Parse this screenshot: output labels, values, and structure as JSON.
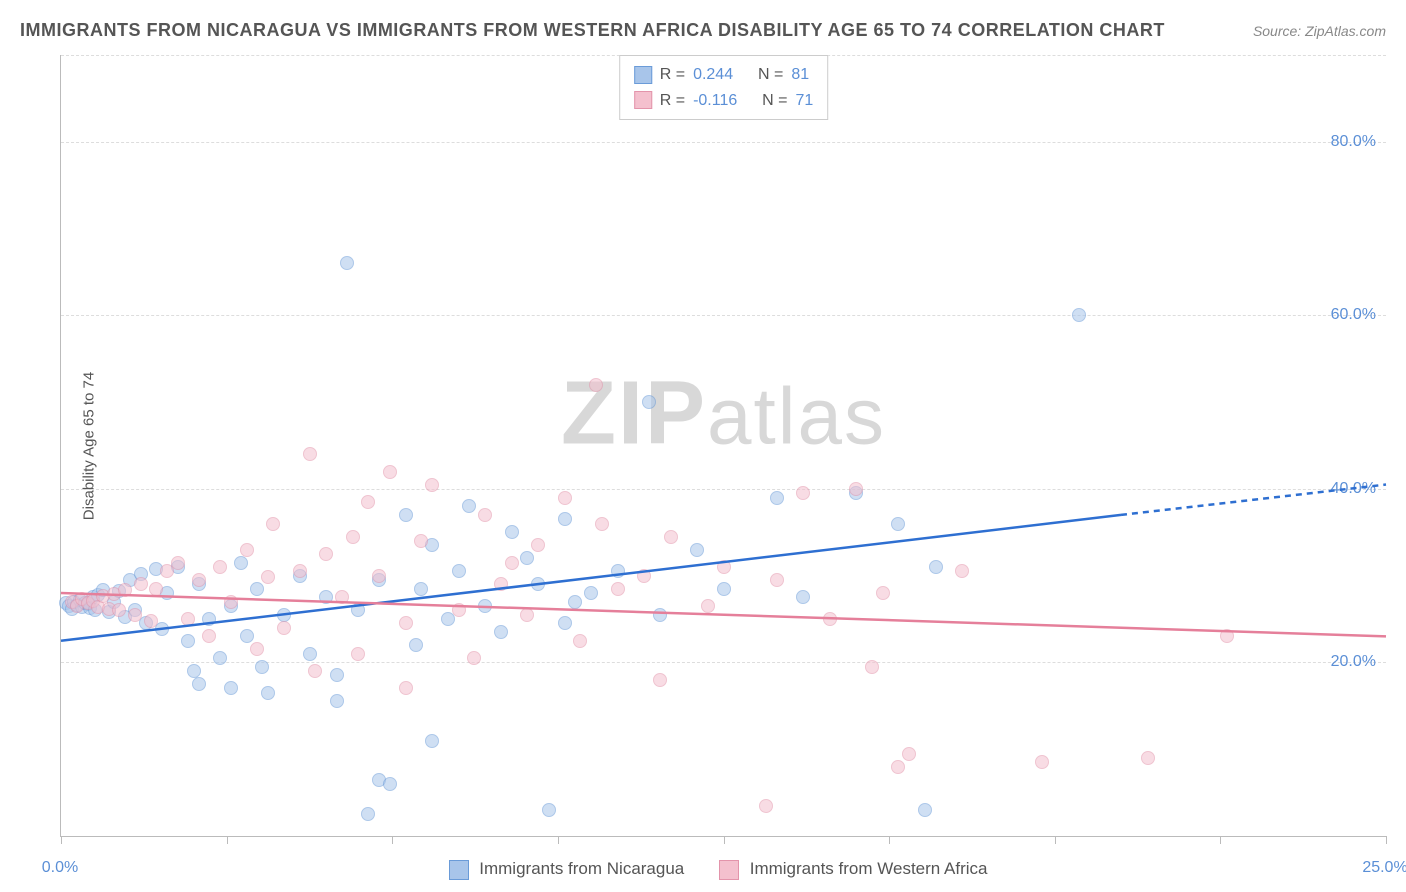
{
  "title": "IMMIGRANTS FROM NICARAGUA VS IMMIGRANTS FROM WESTERN AFRICA DISABILITY AGE 65 TO 74 CORRELATION CHART",
  "source_label": "Source: ",
  "source_name": "ZipAtlas.com",
  "y_axis_label": "Disability Age 65 to 74",
  "watermark_zip": "ZIP",
  "watermark_atlas": "atlas",
  "chart": {
    "type": "scatter",
    "xlim": [
      0,
      25
    ],
    "ylim": [
      0,
      90
    ],
    "background_color": "#ffffff",
    "grid_color": "#dddddd",
    "grid_dash": "4,4",
    "axis_color": "#bbbbbb",
    "point_radius": 7,
    "point_opacity": 0.55,
    "x_ticks": [
      0,
      3.125,
      6.25,
      9.375,
      12.5,
      15.625,
      18.75,
      21.875,
      25
    ],
    "x_tick_labels": {
      "0": "0.0%",
      "25": "25.0%"
    },
    "y_gridlines": [
      20,
      40,
      60,
      80
    ],
    "y_tick_labels": {
      "20": "20.0%",
      "40": "40.0%",
      "60": "60.0%",
      "80": "80.0%"
    },
    "tick_label_color": "#5b8fd6",
    "tick_label_fontsize": 16
  },
  "series": [
    {
      "key": "nicaragua",
      "label": "Immigrants from Nicaragua",
      "fill_color": "#a8c5ea",
      "stroke_color": "#6a9bd8",
      "line_color": "#2e6fd1",
      "line_width": 2.5,
      "R_label": "R = ",
      "R_value": "0.244",
      "N_label": "N = ",
      "N_value": "81",
      "trend": {
        "x1": 0,
        "y1": 22.5,
        "x2": 20,
        "y2": 37,
        "x_dash_end": 25,
        "y_dash_end": 40.5
      },
      "points": [
        [
          0.1,
          26.8
        ],
        [
          0.15,
          26.5
        ],
        [
          0.2,
          26.2
        ],
        [
          0.25,
          27.0
        ],
        [
          0.3,
          26.6
        ],
        [
          0.35,
          27.2
        ],
        [
          0.4,
          26.4
        ],
        [
          0.45,
          26.9
        ],
        [
          0.5,
          26.7
        ],
        [
          0.55,
          26.3
        ],
        [
          0.6,
          27.5
        ],
        [
          0.65,
          26.1
        ],
        [
          0.7,
          27.8
        ],
        [
          0.8,
          28.4
        ],
        [
          0.9,
          25.8
        ],
        [
          1.0,
          27.0
        ],
        [
          1.1,
          28.2
        ],
        [
          1.2,
          25.2
        ],
        [
          1.3,
          29.5
        ],
        [
          1.4,
          26.0
        ],
        [
          1.5,
          30.2
        ],
        [
          1.6,
          24.5
        ],
        [
          1.8,
          30.8
        ],
        [
          1.9,
          23.8
        ],
        [
          2.0,
          28.0
        ],
        [
          2.2,
          31.0
        ],
        [
          2.4,
          22.5
        ],
        [
          2.5,
          19.0
        ],
        [
          2.6,
          29.0
        ],
        [
          2.8,
          25.0
        ],
        [
          2.6,
          17.5
        ],
        [
          3.0,
          20.5
        ],
        [
          3.2,
          26.5
        ],
        [
          3.2,
          17.0
        ],
        [
          3.4,
          31.5
        ],
        [
          3.5,
          23.0
        ],
        [
          3.7,
          28.5
        ],
        [
          3.8,
          19.5
        ],
        [
          3.9,
          16.5
        ],
        [
          4.2,
          25.5
        ],
        [
          4.5,
          30.0
        ],
        [
          4.7,
          21.0
        ],
        [
          5.0,
          27.5
        ],
        [
          5.2,
          15.5
        ],
        [
          5.2,
          18.5
        ],
        [
          5.6,
          26.0
        ],
        [
          5.4,
          66.0
        ],
        [
          5.8,
          2.5
        ],
        [
          6.0,
          29.5
        ],
        [
          6.0,
          6.5
        ],
        [
          6.2,
          6.0
        ],
        [
          6.5,
          37.0
        ],
        [
          6.7,
          22.0
        ],
        [
          6.8,
          28.5
        ],
        [
          7.0,
          33.5
        ],
        [
          7.0,
          11.0
        ],
        [
          7.3,
          25.0
        ],
        [
          7.5,
          30.5
        ],
        [
          7.7,
          38.0
        ],
        [
          8.0,
          26.5
        ],
        [
          8.3,
          23.5
        ],
        [
          8.5,
          35.0
        ],
        [
          8.8,
          32.0
        ],
        [
          9.0,
          29.0
        ],
        [
          9.2,
          3.0
        ],
        [
          9.5,
          36.5
        ],
        [
          9.5,
          24.5
        ],
        [
          9.7,
          27.0
        ],
        [
          10.0,
          28.0
        ],
        [
          10.5,
          30.5
        ],
        [
          11.1,
          50.0
        ],
        [
          11.3,
          25.5
        ],
        [
          12.0,
          33.0
        ],
        [
          13.5,
          39.0
        ],
        [
          14.0,
          27.5
        ],
        [
          15.8,
          36.0
        ],
        [
          16.3,
          3.0
        ],
        [
          16.5,
          31.0
        ],
        [
          19.2,
          60.0
        ],
        [
          15.0,
          39.5
        ],
        [
          12.5,
          28.5
        ]
      ]
    },
    {
      "key": "western_africa",
      "label": "Immigrants from Western Africa",
      "fill_color": "#f4c0ce",
      "stroke_color": "#e394ab",
      "line_color": "#e57f9a",
      "line_width": 2.5,
      "R_label": "R = ",
      "R_value": "-0.116",
      "N_label": "N = ",
      "N_value": "71",
      "trend": {
        "x1": 0,
        "y1": 28.0,
        "x2": 25,
        "y2": 23.0
      },
      "points": [
        [
          0.2,
          27.0
        ],
        [
          0.3,
          26.5
        ],
        [
          0.4,
          27.3
        ],
        [
          0.5,
          26.8
        ],
        [
          0.6,
          27.1
        ],
        [
          0.7,
          26.4
        ],
        [
          0.8,
          27.6
        ],
        [
          0.9,
          26.2
        ],
        [
          1.0,
          27.9
        ],
        [
          1.1,
          26.0
        ],
        [
          1.2,
          28.3
        ],
        [
          1.4,
          25.5
        ],
        [
          1.5,
          29.0
        ],
        [
          1.7,
          24.8
        ],
        [
          1.8,
          28.5
        ],
        [
          2.0,
          30.5
        ],
        [
          2.2,
          31.5
        ],
        [
          2.4,
          25.0
        ],
        [
          2.6,
          29.5
        ],
        [
          2.8,
          23.0
        ],
        [
          3.0,
          31.0
        ],
        [
          3.2,
          27.0
        ],
        [
          3.5,
          33.0
        ],
        [
          3.7,
          21.5
        ],
        [
          3.9,
          29.8
        ],
        [
          4.0,
          36.0
        ],
        [
          4.2,
          24.0
        ],
        [
          4.5,
          30.5
        ],
        [
          4.7,
          44.0
        ],
        [
          4.8,
          19.0
        ],
        [
          5.0,
          32.5
        ],
        [
          5.3,
          27.5
        ],
        [
          5.5,
          34.5
        ],
        [
          5.6,
          21.0
        ],
        [
          5.8,
          38.5
        ],
        [
          6.0,
          30.0
        ],
        [
          6.2,
          42.0
        ],
        [
          6.5,
          24.5
        ],
        [
          6.5,
          17.0
        ],
        [
          6.8,
          34.0
        ],
        [
          7.0,
          40.5
        ],
        [
          7.5,
          26.0
        ],
        [
          7.8,
          20.5
        ],
        [
          8.0,
          37.0
        ],
        [
          8.3,
          29.0
        ],
        [
          8.5,
          31.5
        ],
        [
          8.8,
          25.5
        ],
        [
          9.0,
          33.5
        ],
        [
          9.5,
          39.0
        ],
        [
          9.8,
          22.5
        ],
        [
          10.1,
          52.0
        ],
        [
          10.2,
          36.0
        ],
        [
          10.5,
          28.5
        ],
        [
          11.0,
          30.0
        ],
        [
          11.3,
          18.0
        ],
        [
          11.5,
          34.5
        ],
        [
          12.2,
          26.5
        ],
        [
          12.5,
          31.0
        ],
        [
          13.3,
          3.5
        ],
        [
          13.5,
          29.5
        ],
        [
          14.0,
          39.5
        ],
        [
          14.5,
          25.0
        ],
        [
          15.0,
          40.0
        ],
        [
          15.3,
          19.5
        ],
        [
          15.5,
          28.0
        ],
        [
          15.8,
          8.0
        ],
        [
          16.0,
          9.5
        ],
        [
          17.0,
          30.5
        ],
        [
          18.5,
          8.5
        ],
        [
          22.0,
          23.0
        ],
        [
          20.5,
          9.0
        ]
      ]
    }
  ],
  "legend_bottom_items": [
    {
      "swatch_fill": "#a8c5ea",
      "swatch_stroke": "#6a9bd8",
      "label": "Immigrants from Nicaragua"
    },
    {
      "swatch_fill": "#f4c0ce",
      "swatch_stroke": "#e394ab",
      "label": "Immigrants from Western Africa"
    }
  ]
}
